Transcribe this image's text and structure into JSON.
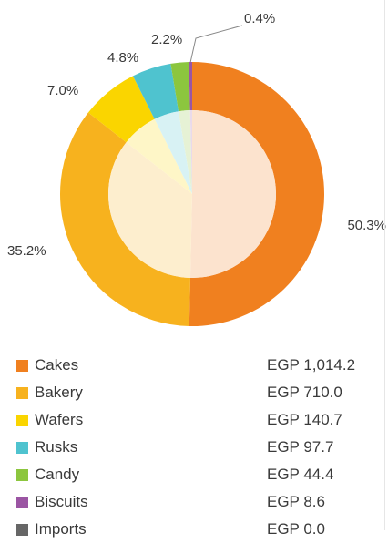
{
  "chart_data": {
    "type": "pie",
    "categories": [
      "Cakes",
      "Bakery",
      "Wafers",
      "Rusks",
      "Candy",
      "Biscuits",
      "Imports"
    ],
    "percent_labels": [
      "50.3%",
      "35.2%",
      "7.0%",
      "4.8%",
      "2.2%",
      "0.4%",
      ""
    ],
    "percents": [
      50.3,
      35.2,
      7.0,
      4.8,
      2.2,
      0.4,
      0.0
    ],
    "values": [
      1014.2,
      710.0,
      140.7,
      97.7,
      44.4,
      8.6,
      0.0
    ],
    "value_labels": [
      "EGP 1,014.2",
      "EGP 710.0",
      "EGP 140.7",
      "EGP 97.7",
      "EGP 44.4",
      "EGP 8.6",
      "EGP 0.0"
    ],
    "colors": [
      "#f0801f",
      "#f7b21e",
      "#fad500",
      "#4fc3cf",
      "#8cc63e",
      "#9b55a3",
      "#666666"
    ],
    "style": "donut",
    "legend_position": "bottom"
  }
}
